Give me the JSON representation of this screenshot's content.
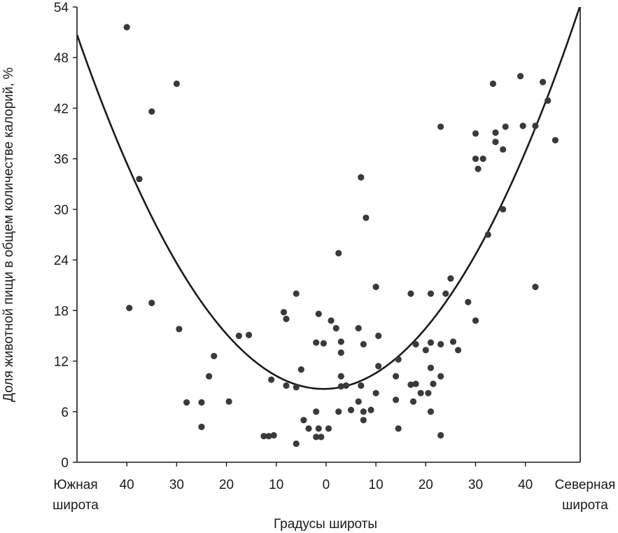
{
  "chart_data": {
    "type": "scatter",
    "xlabel": "Градусы широты",
    "ylabel": "Доля животной пищи в общем количестве калорий, %",
    "x_left_label": [
      "Южная",
      "широта"
    ],
    "x_right_label": [
      "Северная",
      "широта"
    ],
    "xlim": [
      -50,
      51
    ],
    "ylim": [
      0,
      54
    ],
    "yticks": [
      0,
      6,
      12,
      18,
      24,
      30,
      36,
      42,
      48,
      54
    ],
    "xticks": [
      {
        "value": -40,
        "label": "40"
      },
      {
        "value": -30,
        "label": "30"
      },
      {
        "value": -20,
        "label": "20"
      },
      {
        "value": -10,
        "label": "10"
      },
      {
        "value": 0,
        "label": "0"
      },
      {
        "value": 10,
        "label": "10"
      },
      {
        "value": 20,
        "label": "20"
      },
      {
        "value": 30,
        "label": "30"
      },
      {
        "value": 40,
        "label": "40"
      }
    ],
    "grid": false,
    "legend": "none",
    "point_color": "#3a3a3a",
    "curve_color": "#1a1a1a",
    "trend_curve": {
      "type": "quadratic",
      "vertex_x": -0.5,
      "vertex_y": 8.7,
      "a": 0.01715
    },
    "points": [
      [
        -40,
        51.6
      ],
      [
        -30,
        44.9
      ],
      [
        -35,
        41.6
      ],
      [
        -37.5,
        33.6
      ],
      [
        -39.5,
        18.3
      ],
      [
        -35,
        18.9
      ],
      [
        -29.5,
        15.8
      ],
      [
        -17.5,
        15.0
      ],
      [
        -15.5,
        15.1
      ],
      [
        -22.5,
        12.6
      ],
      [
        -23.5,
        10.2
      ],
      [
        -28,
        7.1
      ],
      [
        -25,
        7.1
      ],
      [
        -19.5,
        7.2
      ],
      [
        -25,
        4.2
      ],
      [
        -12.5,
        3.1
      ],
      [
        -11.5,
        3.1
      ],
      [
        -10.5,
        3.2
      ],
      [
        -6,
        2.2
      ],
      [
        -8.5,
        17.8
      ],
      [
        -8,
        17.0
      ],
      [
        -6,
        20.0
      ],
      [
        -5,
        11.0
      ],
      [
        -11,
        9.8
      ],
      [
        -8,
        9.1
      ],
      [
        -6,
        8.9
      ],
      [
        -4.5,
        5.0
      ],
      [
        -3.5,
        4.0
      ],
      [
        -2,
        6.0
      ],
      [
        -2,
        3.0
      ],
      [
        -1,
        3.0
      ],
      [
        -1.5,
        4.0
      ],
      [
        0.5,
        4.0
      ],
      [
        -2,
        14.2
      ],
      [
        -0.5,
        14.1
      ],
      [
        -1.5,
        17.6
      ],
      [
        1,
        16.8
      ],
      [
        2,
        15.9
      ],
      [
        3,
        14.3
      ],
      [
        3,
        13.0
      ],
      [
        2.5,
        24.8
      ],
      [
        3,
        10.2
      ],
      [
        3,
        9.0
      ],
      [
        4,
        9.1
      ],
      [
        2.5,
        6.0
      ],
      [
        5,
        6.2
      ],
      [
        7,
        33.8
      ],
      [
        8,
        29.0
      ],
      [
        6.5,
        15.9
      ],
      [
        7.5,
        14.0
      ],
      [
        10,
        20.8
      ],
      [
        10.5,
        15.0
      ],
      [
        10.5,
        11.4
      ],
      [
        7,
        9.1
      ],
      [
        10,
        8.2
      ],
      [
        6.5,
        7.2
      ],
      [
        7.5,
        6.0
      ],
      [
        7.5,
        5.0
      ],
      [
        9,
        6.2
      ],
      [
        14.5,
        12.2
      ],
      [
        14,
        10.2
      ],
      [
        14,
        7.4
      ],
      [
        14.5,
        4.0
      ],
      [
        17,
        20.0
      ],
      [
        18,
        14.0
      ],
      [
        17,
        9.2
      ],
      [
        18,
        9.3
      ],
      [
        17.5,
        7.2
      ],
      [
        19,
        8.2
      ],
      [
        20,
        13.3
      ],
      [
        21,
        14.2
      ],
      [
        21,
        20.0
      ],
      [
        21,
        11.2
      ],
      [
        20.5,
        8.2
      ],
      [
        21.5,
        9.3
      ],
      [
        21,
        6.0
      ],
      [
        23,
        14.0
      ],
      [
        23,
        10.2
      ],
      [
        23,
        3.2
      ],
      [
        23,
        39.8
      ],
      [
        24,
        20.0
      ],
      [
        25,
        21.8
      ],
      [
        25.5,
        14.3
      ],
      [
        26.5,
        13.3
      ],
      [
        28.5,
        19.0
      ],
      [
        30,
        16.8
      ],
      [
        30,
        39.0
      ],
      [
        30,
        36.0
      ],
      [
        30.5,
        34.8
      ],
      [
        31.5,
        36.0
      ],
      [
        32.5,
        27.0
      ],
      [
        33.5,
        44.9
      ],
      [
        34,
        39.1
      ],
      [
        34,
        38.0
      ],
      [
        35.5,
        37.1
      ],
      [
        36,
        39.8
      ],
      [
        35.5,
        30.0
      ],
      [
        39,
        45.8
      ],
      [
        39.5,
        39.9
      ],
      [
        42,
        39.9
      ],
      [
        42,
        20.8
      ],
      [
        43.5,
        45.1
      ],
      [
        44.5,
        42.9
      ],
      [
        46,
        38.2
      ]
    ]
  }
}
